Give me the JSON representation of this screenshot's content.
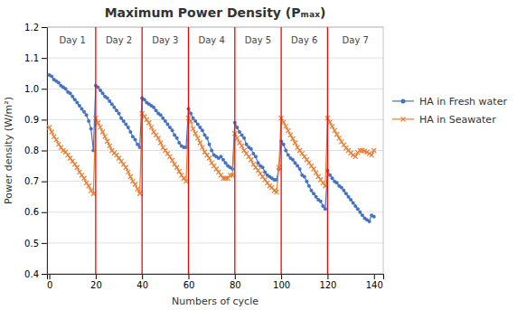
{
  "chart_data": {
    "type": "line",
    "title": "Maximum Power Density (Pₘₐₓ)",
    "x_label": "Numbers of cycle",
    "y_label": "Power density (W/m²)",
    "xlim": [
      -1,
      144
    ],
    "ylim": [
      0.4,
      1.2
    ],
    "xticks": [
      0,
      20,
      40,
      60,
      80,
      100,
      120,
      140
    ],
    "yticks": [
      0.4,
      0.5,
      0.6,
      0.7,
      0.8,
      0.9,
      {
        "value": 1.0,
        "label": "1.0"
      },
      1.1,
      1.2
    ],
    "grid": "y",
    "legend": "right",
    "x": [
      0,
      1,
      2,
      3,
      4,
      5,
      6,
      7,
      8,
      9,
      10,
      11,
      12,
      13,
      14,
      15,
      16,
      17,
      18,
      19,
      20,
      21,
      22,
      23,
      24,
      25,
      26,
      27,
      28,
      29,
      30,
      31,
      32,
      33,
      34,
      35,
      36,
      37,
      38,
      39,
      40,
      41,
      42,
      43,
      44,
      45,
      46,
      47,
      48,
      49,
      50,
      51,
      52,
      53,
      54,
      55,
      56,
      57,
      58,
      59,
      60,
      61,
      62,
      63,
      64,
      65,
      66,
      67,
      68,
      69,
      70,
      71,
      72,
      73,
      74,
      75,
      76,
      77,
      78,
      79,
      80,
      81,
      82,
      83,
      84,
      85,
      86,
      87,
      88,
      89,
      90,
      91,
      92,
      93,
      94,
      95,
      96,
      97,
      98,
      99,
      100,
      101,
      102,
      103,
      104,
      105,
      106,
      107,
      108,
      109,
      110,
      111,
      112,
      113,
      114,
      115,
      116,
      117,
      118,
      119,
      120,
      121,
      122,
      123,
      124,
      125,
      126,
      127,
      128,
      129,
      130,
      131,
      132,
      133,
      134,
      135,
      136,
      137,
      138,
      139,
      140
    ],
    "series": [
      {
        "name": "HA in Fresh water",
        "color": "#4472C4",
        "marker": "circle",
        "values": [
          1.045,
          1.04,
          1.03,
          1.025,
          1.02,
          1.01,
          1.005,
          1.0,
          0.99,
          0.985,
          0.975,
          0.965,
          0.955,
          0.945,
          0.935,
          0.925,
          0.915,
          0.895,
          0.87,
          0.8,
          1.01,
          1.005,
          0.995,
          0.985,
          0.975,
          0.97,
          0.96,
          0.95,
          0.94,
          0.93,
          0.92,
          0.905,
          0.895,
          0.885,
          0.875,
          0.86,
          0.845,
          0.835,
          0.82,
          0.81,
          0.97,
          0.965,
          0.955,
          0.95,
          0.945,
          0.94,
          0.93,
          0.92,
          0.915,
          0.905,
          0.895,
          0.885,
          0.875,
          0.865,
          0.85,
          0.84,
          0.825,
          0.815,
          0.81,
          0.81,
          0.935,
          0.92,
          0.905,
          0.895,
          0.885,
          0.875,
          0.865,
          0.85,
          0.84,
          0.82,
          0.8,
          0.785,
          0.78,
          0.775,
          0.78,
          0.77,
          0.76,
          0.75,
          0.745,
          0.74,
          0.89,
          0.875,
          0.86,
          0.85,
          0.84,
          0.82,
          0.81,
          0.805,
          0.79,
          0.78,
          0.76,
          0.75,
          0.745,
          0.73,
          0.72,
          0.715,
          0.71,
          0.705,
          0.705,
          0.74,
          0.83,
          0.82,
          0.8,
          0.785,
          0.775,
          0.77,
          0.76,
          0.75,
          0.74,
          0.72,
          0.715,
          0.7,
          0.685,
          0.67,
          0.66,
          0.65,
          0.64,
          0.635,
          0.62,
          0.61,
          0.735,
          0.72,
          0.71,
          0.7,
          0.695,
          0.685,
          0.68,
          0.67,
          0.66,
          0.65,
          0.64,
          0.63,
          0.62,
          0.61,
          0.6,
          0.59,
          0.58,
          0.575,
          0.57,
          0.59,
          0.585
        ]
      },
      {
        "name": "HA in Seawater",
        "color": "#ED7D31",
        "marker": "x",
        "values": [
          0.875,
          0.86,
          0.845,
          0.835,
          0.82,
          0.81,
          0.8,
          0.795,
          0.785,
          0.775,
          0.765,
          0.755,
          0.745,
          0.73,
          0.72,
          0.71,
          0.695,
          0.685,
          0.67,
          0.66,
          0.905,
          0.89,
          0.875,
          0.86,
          0.845,
          0.83,
          0.815,
          0.8,
          0.792,
          0.785,
          0.775,
          0.765,
          0.755,
          0.745,
          0.73,
          0.715,
          0.7,
          0.69,
          0.675,
          0.66,
          0.92,
          0.91,
          0.9,
          0.89,
          0.875,
          0.86,
          0.85,
          0.84,
          0.825,
          0.81,
          0.8,
          0.79,
          0.78,
          0.768,
          0.755,
          0.745,
          0.732,
          0.72,
          0.71,
          0.7,
          0.905,
          0.895,
          0.87,
          0.855,
          0.84,
          0.825,
          0.81,
          0.795,
          0.785,
          0.775,
          0.76,
          0.75,
          0.74,
          0.73,
          0.72,
          0.71,
          0.71,
          0.71,
          0.72,
          0.72,
          0.855,
          0.84,
          0.825,
          0.815,
          0.8,
          0.79,
          0.78,
          0.77,
          0.755,
          0.745,
          0.735,
          0.725,
          0.715,
          0.705,
          0.695,
          0.685,
          0.68,
          0.67,
          0.665,
          0.745,
          0.905,
          0.892,
          0.878,
          0.864,
          0.85,
          0.838,
          0.825,
          0.81,
          0.8,
          0.79,
          0.78,
          0.77,
          0.76,
          0.75,
          0.74,
          0.728,
          0.715,
          0.705,
          0.695,
          0.685,
          0.905,
          0.892,
          0.878,
          0.865,
          0.852,
          0.84,
          0.828,
          0.818,
          0.808,
          0.8,
          0.792,
          0.785,
          0.78,
          0.793,
          0.8,
          0.8,
          0.798,
          0.795,
          0.79,
          0.785,
          0.8
        ]
      }
    ],
    "vlines": {
      "values": [
        20,
        40,
        60,
        80,
        100,
        120
      ],
      "color": "red"
    },
    "annotations": [
      {
        "text": "Day 1",
        "x": 10,
        "y": 1.175
      },
      {
        "text": "Day 2",
        "x": 30,
        "y": 1.175
      },
      {
        "text": "Day 3",
        "x": 50,
        "y": 1.175
      },
      {
        "text": "Day 4",
        "x": 70,
        "y": 1.175
      },
      {
        "text": "Day 5",
        "x": 90,
        "y": 1.175
      },
      {
        "text": "Day 6",
        "x": 110,
        "y": 1.175
      },
      {
        "text": "Day 7",
        "x": 132,
        "y": 1.175
      }
    ]
  }
}
